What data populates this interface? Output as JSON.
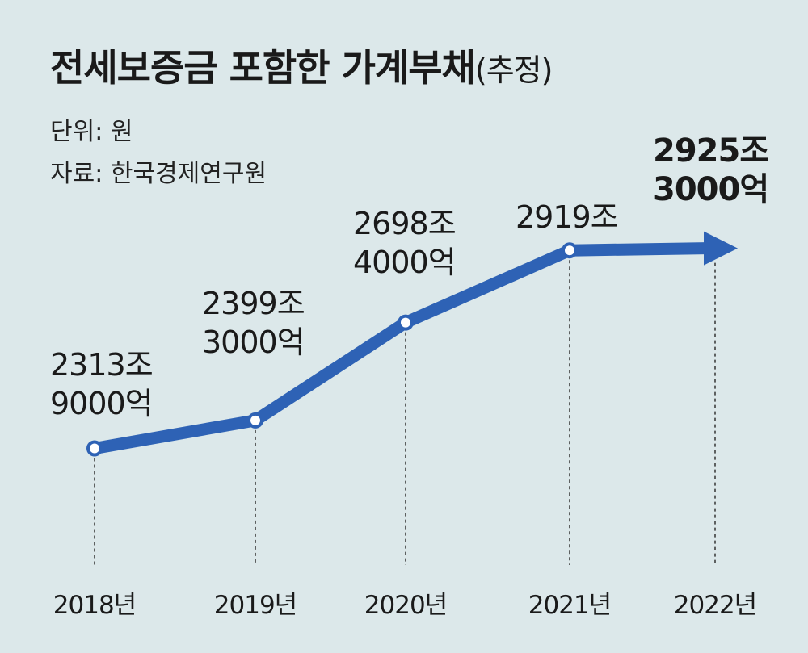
{
  "header": {
    "title_main": "전세보증금 포함한 가계부채",
    "title_sub": "(추정)",
    "unit": "단위: 원",
    "source": "자료: 한국경제연구원"
  },
  "chart_data": {
    "type": "line",
    "title": "전세보증금 포함한 가계부채(추정)",
    "unit": "원",
    "x": [
      "2018년",
      "2019년",
      "2020년",
      "2021년",
      "2022년"
    ],
    "values": [
      2313.9,
      2399.3,
      2698.4,
      2919.0,
      2925.3
    ],
    "value_unit": "조",
    "data_labels": [
      [
        "2313조",
        "9000억"
      ],
      [
        "2399조",
        "3000억"
      ],
      [
        "2698조",
        "4000억"
      ],
      [
        "2919조"
      ],
      [
        "2925조",
        "3000억"
      ]
    ],
    "estimated_last_point": true,
    "grid": false,
    "legend": "none",
    "line_color": "#2e62b5"
  }
}
